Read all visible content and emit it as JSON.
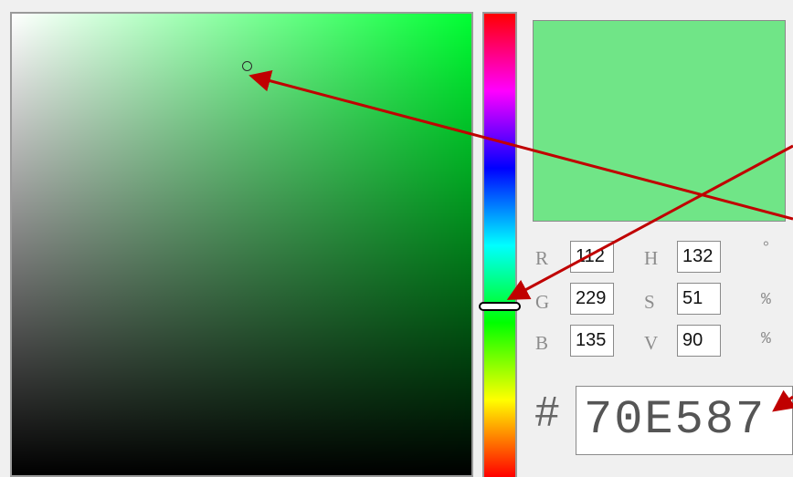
{
  "colors": {
    "hue": "#00ff33",
    "preview": "#70e587",
    "annotation_arrow": "#c00000",
    "frame_border": "#9a9a9a"
  },
  "fields": {
    "r": {
      "label": "R",
      "value": "112"
    },
    "g": {
      "label": "G",
      "value": "229"
    },
    "b": {
      "label": "B",
      "value": "135"
    },
    "h": {
      "label": "H",
      "value": "132",
      "unit": "°"
    },
    "s": {
      "label": "S",
      "value": "51",
      "unit": "%"
    },
    "v": {
      "label": "V",
      "value": "90",
      "unit": "%"
    }
  },
  "hex": {
    "prefix": "#",
    "value": "70E587"
  },
  "icons": {
    "sv_cursor": "circle-cursor-icon",
    "hue_handle": "slider-handle-icon"
  }
}
